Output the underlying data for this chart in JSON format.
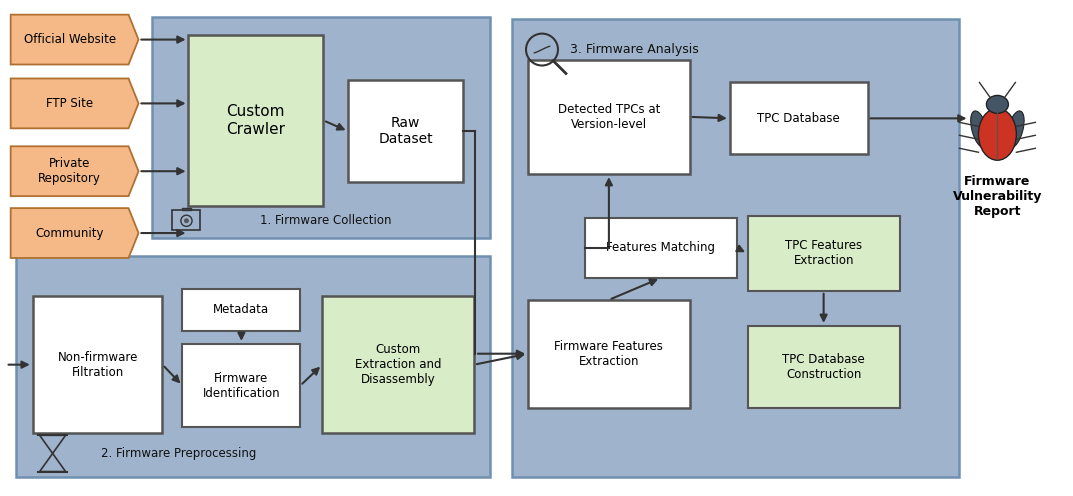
{
  "bg_color": "#ffffff",
  "panel_color": "#9fb4cc",
  "panel_edge": "#7090b0",
  "source_box_color": "#f5b987",
  "source_box_edge": "#b07030",
  "crawler_box_color": "#d8ecc8",
  "crawler_box_edge": "#555555",
  "raw_dataset_color": "#ffffff",
  "raw_dataset_edge": "#555555",
  "white_box_color": "#ffffff",
  "white_box_edge": "#555555",
  "green_box_color": "#d8ecc8",
  "green_box_edge": "#555555",
  "arrow_color": "#333333",
  "sources": [
    "Official Website",
    "FTP Site",
    "Private\nRepository",
    "Community"
  ],
  "section1_label": "1. Firmware Collection",
  "section2_label": "2. Firmware Preprocessing",
  "section3_label": "3. Firmware Analysis",
  "bug_body_color": "#cc3322",
  "bug_head_color": "#445566",
  "report_label": "Firmware\nVulnerability\nReport"
}
